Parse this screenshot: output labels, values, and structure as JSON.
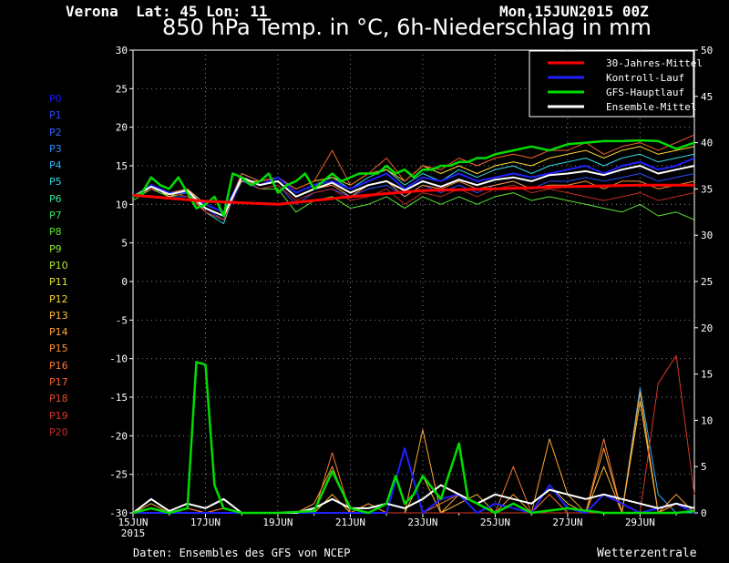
{
  "header": {
    "location": "Verona  Lat: 45 Lon: 11",
    "date": "Mon,15JUN2015 00Z",
    "title": "850 hPa Temp. in °C, 6h-Niederschlag in mm"
  },
  "members": [
    "P0",
    "P1",
    "P2",
    "P3",
    "P4",
    "P5",
    "P6",
    "P7",
    "P8",
    "P9",
    "P10",
    "P11",
    "P12",
    "P13",
    "P14",
    "P15",
    "P16",
    "P17",
    "P18",
    "P19",
    "P20"
  ],
  "member_colors": [
    "#1a1aff",
    "#2b4dff",
    "#3366ff",
    "#2f8cff",
    "#33b2ff",
    "#33d9e6",
    "#33e6a0",
    "#33e65a",
    "#5ae633",
    "#8ce633",
    "#b8e633",
    "#e6e633",
    "#ffd633",
    "#ffbf33",
    "#ffa833",
    "#ff9033",
    "#ff7833",
    "#f26030",
    "#e64a2e",
    "#d6382a",
    "#c42a26"
  ],
  "footer": {
    "credit": "Daten: Ensembles des GFS von NCEP",
    "brand": "Wetterzentrale"
  },
  "chart_data": {
    "type": "line",
    "left_axis": {
      "label": "850 hPa Temp. (°C)",
      "ylim": [
        -30,
        30
      ],
      "ticks": [
        "30",
        "25",
        "20",
        "15",
        "10",
        "5",
        "0",
        "-5",
        "-10",
        "-15",
        "-20",
        "-25",
        "-30"
      ]
    },
    "right_axis": {
      "label": "6h-Niederschlag (mm)",
      "ylim": [
        0,
        50
      ],
      "ticks": [
        "50",
        "45",
        "40",
        "35",
        "30",
        "25",
        "20",
        "15",
        "10",
        "5",
        "0"
      ]
    },
    "x_ticks": [
      "15JUN\n2015",
      "17JUN",
      "19JUN",
      "21JUN",
      "23JUN",
      "25JUN",
      "27JUN",
      "29JUN"
    ],
    "x_tick_labels": [
      "15JUN",
      "17JUN",
      "19JUN",
      "21JUN",
      "23JUN",
      "25JUN",
      "27JUN",
      "29JUN"
    ],
    "x_year": "2015",
    "grid": true,
    "legend": {
      "position": "top-right",
      "entries": [
        {
          "name": "30-Jahres-Mittel",
          "color": "#ff0000"
        },
        {
          "name": "Kontroll-Lauf",
          "color": "#2020ff"
        },
        {
          "name": "GFS-Hauptlauf",
          "color": "#00dd00"
        },
        {
          "name": "Ensemble-Mittel",
          "color": "#ffffff"
        }
      ]
    },
    "series": [
      {
        "name": "30-Jahres-Mittel",
        "axis": "left",
        "x": [
          0,
          2,
          4,
          6,
          8,
          10,
          12,
          14,
          15.5
        ],
        "values": [
          11.2,
          10.4,
          10.0,
          11.0,
          11.8,
          12.0,
          12.3,
          12.5,
          12.5
        ]
      },
      {
        "name": "GFS-Hauptlauf",
        "axis": "left",
        "x": [
          0,
          0.25,
          0.5,
          0.75,
          1,
          1.25,
          1.5,
          1.75,
          2,
          2.25,
          2.5,
          2.75,
          3,
          3.25,
          3.5,
          3.75,
          4,
          4.25,
          4.5,
          4.75,
          5,
          5.25,
          5.5,
          5.75,
          6,
          6.25,
          6.5,
          6.75,
          7,
          7.25,
          7.5,
          7.75,
          8,
          8.25,
          8.5,
          8.75,
          9,
          9.25,
          9.5,
          9.75,
          10,
          10.5,
          11,
          11.5,
          12,
          12.5,
          13,
          13.5,
          14,
          14.5,
          15,
          15.5
        ],
        "values": [
          11,
          11.5,
          13.5,
          12.5,
          12,
          13.5,
          11.5,
          9.5,
          10,
          11,
          8.5,
          14,
          13.5,
          12.5,
          13,
          14,
          11.5,
          12.5,
          13,
          14,
          12,
          13,
          14,
          13,
          13.5,
          14,
          14,
          14,
          15,
          14,
          14.5,
          13.5,
          14.5,
          14.5,
          15,
          15,
          15.5,
          15.5,
          16,
          16,
          16.5,
          17,
          17.5,
          17,
          17.8,
          18,
          18.2,
          18.2,
          18.3,
          18.2,
          17.2,
          18
        ]
      },
      {
        "name": "Kontroll-Lauf",
        "axis": "left",
        "x": [
          0,
          0.5,
          1,
          1.5,
          2,
          2.5,
          3,
          3.5,
          4,
          4.5,
          5,
          5.5,
          6,
          6.5,
          7,
          7.5,
          8,
          8.5,
          9,
          9.5,
          10,
          10.5,
          11,
          11.5,
          12,
          12.5,
          13,
          13.5,
          14,
          14.5,
          15,
          15.5
        ],
        "values": [
          11,
          12.5,
          11.5,
          11.5,
          10,
          9,
          13.5,
          12.5,
          13.5,
          11.5,
          12.5,
          13,
          12,
          13,
          14,
          12,
          13.5,
          13,
          14,
          13,
          13.5,
          14,
          13.5,
          14,
          14.5,
          15,
          14,
          15,
          15.5,
          14.5,
          15,
          16
        ]
      },
      {
        "name": "Ensemble-Mittel",
        "axis": "left",
        "x": [
          0,
          0.5,
          1,
          1.5,
          2,
          2.5,
          3,
          3.5,
          4,
          4.5,
          5,
          5.5,
          6,
          6.5,
          7,
          7.5,
          8,
          8.5,
          9,
          9.5,
          10,
          10.5,
          11,
          11.5,
          12,
          12.5,
          13,
          13.5,
          14,
          14.5,
          15,
          15.5
        ],
        "values": [
          11,
          12.3,
          11.3,
          11.8,
          9.5,
          8.5,
          13.5,
          12.5,
          13,
          11,
          12,
          12.8,
          11.5,
          12.5,
          13,
          11.8,
          13,
          12.3,
          13.2,
          12.5,
          13.2,
          13.5,
          13,
          13.8,
          14,
          14.3,
          13.8,
          14.5,
          15,
          14,
          14.5,
          15
        ]
      },
      {
        "name": "GFS-Hauptlauf",
        "axis": "right",
        "x": [
          0,
          0.5,
          1,
          1.5,
          1.75,
          2,
          2.25,
          2.5,
          3,
          4,
          5,
          5.5,
          6,
          6.5,
          7,
          7.25,
          7.5,
          7.75,
          8,
          8.5,
          9,
          9.25,
          9.5,
          10,
          10.5,
          11,
          12,
          13,
          14,
          15,
          15.5
        ],
        "values": [
          0,
          0.5,
          0,
          0.5,
          16.3,
          16,
          3,
          0.5,
          0,
          0,
          0.2,
          4.5,
          0.5,
          0,
          1,
          4,
          1,
          2,
          4,
          1.5,
          7.5,
          1.5,
          1,
          0,
          1,
          0,
          0.5,
          0,
          0,
          0,
          0.2
        ]
      },
      {
        "name": "Kontroll-Lauf",
        "axis": "right",
        "x": [
          0,
          2,
          4,
          5,
          6,
          7,
          7.5,
          8,
          8.5,
          9,
          9.5,
          10,
          11,
          11.5,
          12,
          12.5,
          13,
          14,
          15,
          15.5
        ],
        "values": [
          0,
          0,
          0,
          0,
          0,
          0,
          7,
          0,
          1.5,
          2,
          0,
          1,
          0,
          3,
          0.5,
          0,
          2,
          0,
          1,
          0
        ]
      },
      {
        "name": "Ensemble-Mittel",
        "axis": "right",
        "x": [
          0,
          0.5,
          1,
          1.5,
          2,
          2.5,
          3,
          3.5,
          4,
          4.5,
          5,
          5.5,
          6,
          6.5,
          7,
          7.5,
          8,
          8.5,
          9,
          9.5,
          10,
          10.5,
          11,
          11.5,
          12,
          12.5,
          13,
          13.5,
          14,
          14.5,
          15,
          15.5
        ],
        "values": [
          0,
          1.5,
          0.2,
          1,
          0.5,
          1.5,
          0,
          0,
          0,
          0,
          0.5,
          1.5,
          0.5,
          0.5,
          1,
          0.5,
          1.5,
          3,
          2,
          1,
          2,
          1.5,
          1,
          2.5,
          2,
          1.5,
          2,
          1.5,
          1,
          0.5,
          1,
          0.5
        ]
      }
    ],
    "ensemble_members": [
      {
        "name": "P1",
        "axis": "left",
        "values": [
          11,
          12,
          11,
          11,
          9.5,
          8,
          13,
          12,
          12.5,
          10,
          11.5,
          12,
          11,
          12,
          12.5,
          11,
          12.5,
          11.5,
          12.5,
          11.5,
          12.5,
          13,
          12,
          13,
          13,
          13.5,
          13,
          13.5,
          14,
          13,
          13.5,
          14
        ]
      },
      {
        "name": "P5",
        "axis": "left",
        "values": [
          11,
          12.5,
          11.5,
          12,
          9,
          7.5,
          14,
          13,
          13.5,
          11.5,
          12.5,
          13.5,
          12,
          13.5,
          14.5,
          12.5,
          14,
          13,
          14.5,
          13.5,
          14.5,
          15,
          14,
          15,
          15.5,
          16,
          15,
          16,
          16.5,
          15.5,
          16,
          16.5
        ]
      },
      {
        "name": "P8",
        "axis": "left",
        "values": [
          10.5,
          12,
          11,
          11.5,
          9.5,
          8.5,
          13.5,
          12,
          12,
          9,
          10.5,
          11,
          9.5,
          10,
          11,
          9.5,
          11,
          10,
          11,
          10,
          11,
          11.5,
          10.5,
          11,
          10.5,
          10,
          9.5,
          9,
          10,
          8.5,
          9,
          8
        ]
      },
      {
        "name": "P12",
        "axis": "left",
        "values": [
          11,
          12.5,
          11,
          12,
          10,
          9,
          13,
          13,
          13.5,
          12,
          13,
          13.5,
          12.5,
          14,
          14.5,
          13,
          15,
          14,
          15,
          14,
          15,
          15.5,
          15,
          16,
          16.5,
          17,
          16,
          17,
          17.5,
          16.5,
          17,
          17.5
        ]
      },
      {
        "name": "P15",
        "axis": "left",
        "values": [
          11,
          12,
          11.5,
          11.5,
          9,
          8,
          13.5,
          12.5,
          13,
          11,
          12,
          12.5,
          11,
          12.5,
          13,
          11,
          12.5,
          12,
          13,
          12,
          12.5,
          13,
          12,
          12.5,
          12.5,
          13,
          12,
          13,
          13,
          12,
          12.5,
          13
        ]
      },
      {
        "name": "P17",
        "axis": "left",
        "values": [
          11,
          12.5,
          11.5,
          12,
          9.5,
          8.5,
          14,
          13,
          13.5,
          12,
          13,
          17,
          12.5,
          14,
          16,
          13,
          15,
          14.5,
          16,
          15,
          16,
          16.5,
          16,
          17,
          17,
          18,
          16.5,
          17.5,
          18,
          17,
          18,
          19
        ]
      },
      {
        "name": "P20",
        "axis": "left",
        "values": [
          11,
          12,
          11.5,
          11,
          9,
          8,
          13.5,
          12,
          12.5,
          10.5,
          11.5,
          12,
          10.5,
          11,
          12,
          10,
          11.5,
          11,
          12,
          11,
          12,
          12.5,
          11.5,
          12,
          11.5,
          11,
          10.5,
          11,
          11.5,
          10.5,
          11,
          11.5
        ]
      },
      {
        "name": "P4",
        "axis": "right",
        "values": [
          0,
          0,
          0,
          0,
          0,
          0,
          0,
          0,
          0,
          0,
          0,
          0,
          0,
          0,
          0,
          0,
          0,
          0,
          0,
          0,
          0,
          0,
          0,
          0,
          0,
          0,
          0,
          0,
          13.5,
          2,
          0,
          0
        ]
      },
      {
        "name": "P13",
        "axis": "right",
        "values": [
          0,
          0.5,
          0,
          0.5,
          0,
          0.5,
          0,
          0,
          0,
          0,
          0,
          2,
          0,
          0,
          0,
          0,
          4,
          0,
          1,
          2,
          0,
          1,
          0,
          3,
          1,
          0,
          5,
          0,
          12,
          0,
          1,
          0
        ]
      },
      {
        "name": "P14",
        "axis": "right",
        "values": [
          0,
          1,
          0,
          0.5,
          0,
          0,
          0,
          0,
          0,
          0,
          1,
          5,
          0,
          1,
          0,
          0,
          9,
          0,
          2,
          1,
          0,
          2,
          0,
          8,
          2,
          0,
          7,
          0,
          13,
          0,
          2,
          0
        ]
      },
      {
        "name": "P16",
        "axis": "right",
        "values": [
          0,
          0.5,
          0,
          0.5,
          0,
          0.5,
          0,
          0,
          0,
          0,
          0,
          6.5,
          0,
          0,
          0,
          0,
          0,
          1,
          2,
          0,
          0,
          5,
          0,
          2,
          0,
          0,
          8,
          0,
          0,
          0,
          1,
          0
        ]
      },
      {
        "name": "P19",
        "axis": "right",
        "values": [
          0,
          0,
          0,
          0,
          0,
          0,
          0,
          0,
          0,
          0,
          0,
          0,
          0,
          0,
          0,
          0,
          0,
          0,
          0,
          0,
          0,
          0,
          0,
          0,
          0,
          0,
          0,
          0,
          0,
          14,
          17,
          2
        ]
      }
    ]
  }
}
